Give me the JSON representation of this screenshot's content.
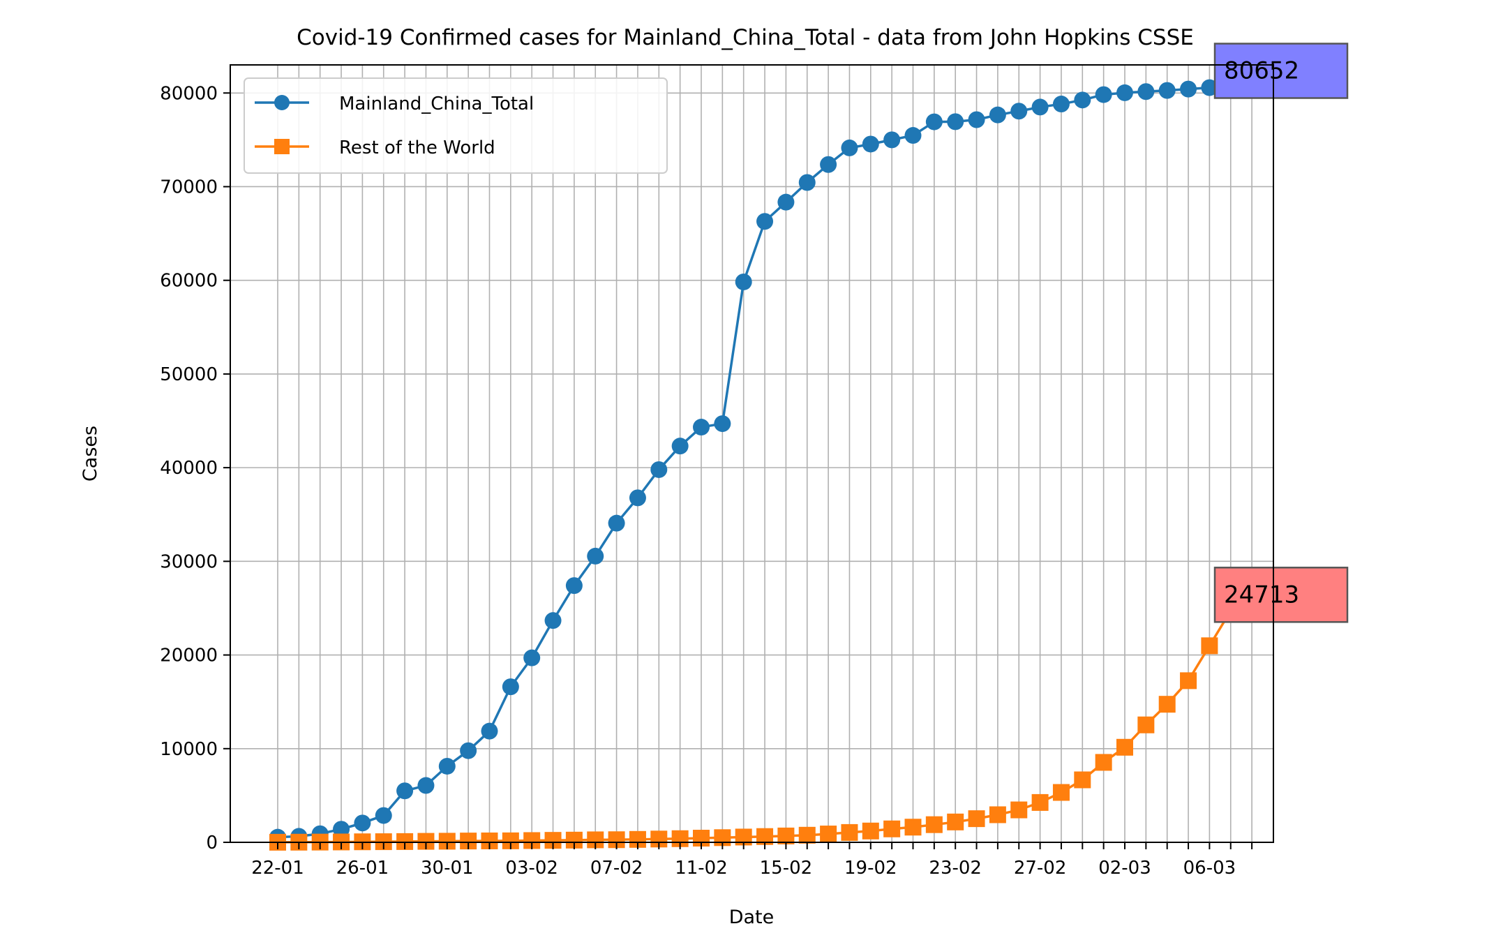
{
  "chart_data": {
    "type": "line",
    "title": "Covid-19 Confirmed cases for Mainland_China_Total - data from John Hopkins CSSE",
    "xlabel": "Date",
    "ylabel": "Cases",
    "ylim": [
      0,
      83000
    ],
    "yticks": [
      0,
      10000,
      20000,
      30000,
      40000,
      50000,
      60000,
      70000,
      80000
    ],
    "grid": true,
    "legend_position": "top-left",
    "x_dates": [
      "22-01",
      "23-01",
      "24-01",
      "25-01",
      "26-01",
      "27-01",
      "28-01",
      "29-01",
      "30-01",
      "31-01",
      "01-02",
      "02-02",
      "03-02",
      "04-02",
      "05-02",
      "06-02",
      "07-02",
      "08-02",
      "09-02",
      "10-02",
      "11-02",
      "12-02",
      "13-02",
      "14-02",
      "15-02",
      "16-02",
      "17-02",
      "18-02",
      "19-02",
      "20-02",
      "21-02",
      "22-02",
      "23-02",
      "24-02",
      "25-02",
      "26-02",
      "27-02",
      "28-02",
      "29-02",
      "01-03",
      "02-03",
      "03-03",
      "04-03",
      "05-03",
      "06-03",
      "07-03",
      "08-03"
    ],
    "x_tick_labels": [
      "22-01",
      "26-01",
      "30-01",
      "03-02",
      "07-02",
      "11-02",
      "15-02",
      "19-02",
      "23-02",
      "27-02",
      "02-03",
      "06-03"
    ],
    "series": [
      {
        "name": "Mainland_China_Total",
        "color": "#1f77b4",
        "marker": "circle",
        "values": [
          547,
          639,
          916,
          1399,
          2062,
          2863,
          5494,
          6070,
          8124,
          9783,
          11871,
          16607,
          19693,
          23680,
          27409,
          30553,
          34075,
          36778,
          39790,
          42306,
          44327,
          44699,
          59832,
          66292,
          68347,
          70446,
          72364,
          74139,
          74546,
          74999,
          75472,
          76922,
          76938,
          77152,
          77660,
          78065,
          78498,
          78824,
          79251,
          79826,
          80026,
          80151,
          80271,
          80422,
          80573,
          80652,
          80652
        ]
      },
      {
        "name": "Rest of the World",
        "color": "#ff7f0e",
        "marker": "square",
        "values": [
          8,
          15,
          25,
          39,
          56,
          68,
          82,
          105,
          118,
          140,
          152,
          159,
          188,
          211,
          236,
          266,
          279,
          312,
          350,
          390,
          446,
          499,
          563,
          618,
          678,
          758,
          891,
          1050,
          1208,
          1433,
          1620,
          1886,
          2173,
          2524,
          2945,
          3462,
          4254,
          5326,
          6669,
          8535,
          10149,
          12537,
          14739,
          17256,
          20986,
          24713,
          24713
        ]
      }
    ],
    "annotations": [
      {
        "text": "80652",
        "series": 0,
        "point_color": "#0000ff",
        "box_color": "#8080ff"
      },
      {
        "text": "24713",
        "series": 1,
        "point_color": "#ff2000",
        "box_color": "#ff8080"
      }
    ]
  }
}
